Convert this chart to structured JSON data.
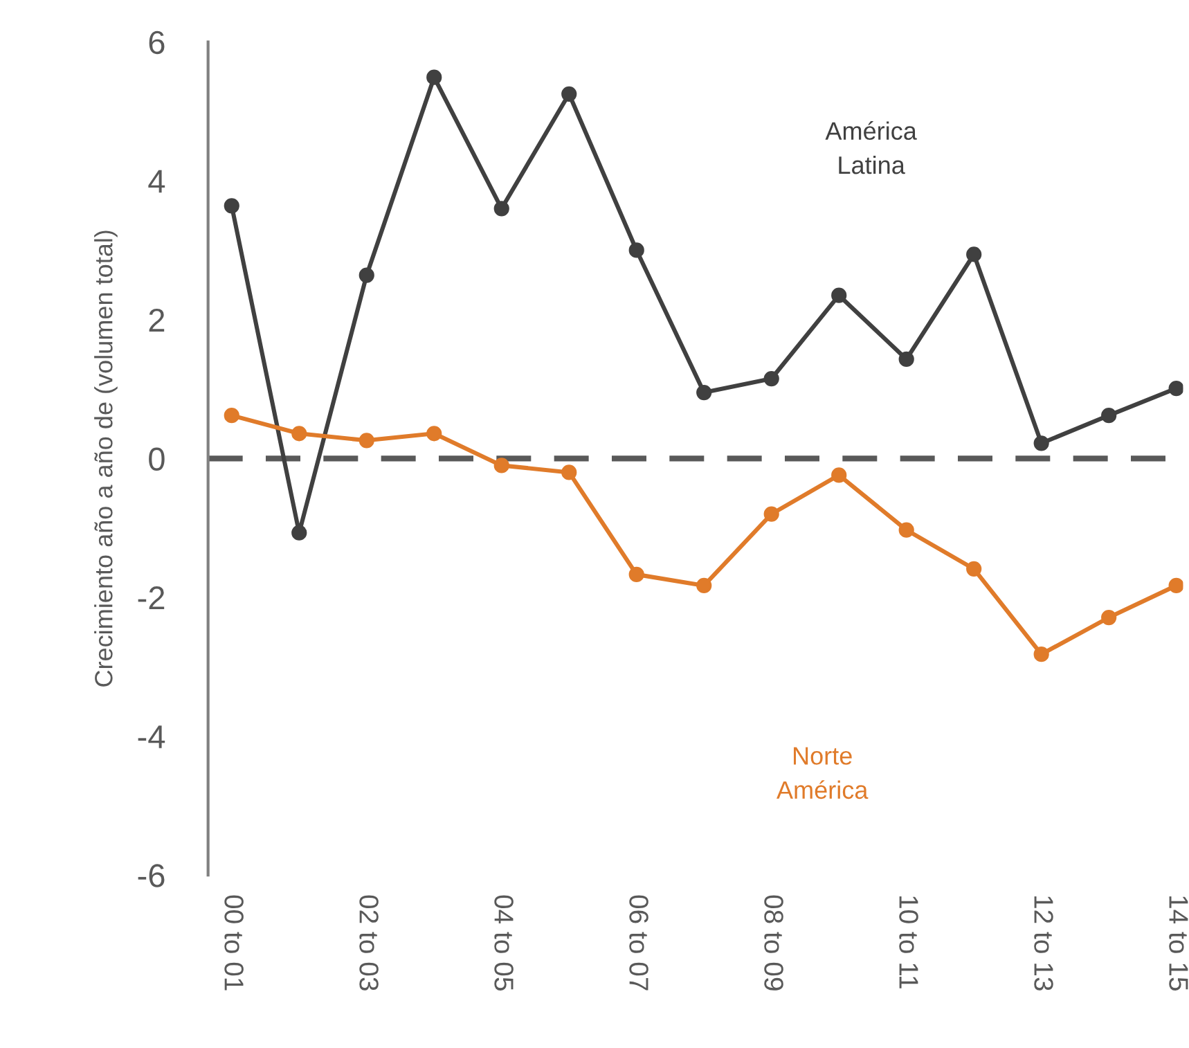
{
  "chart_data": {
    "type": "line",
    "ylabel": "Crecimiento año a año de (volumen total)",
    "categories": [
      "00 to 01",
      null,
      "02 to 03",
      null,
      "04 to 05",
      null,
      "06 to 07",
      null,
      "08 to 09",
      null,
      "10 to 11",
      null,
      "12 to 13",
      null,
      "14 to 15"
    ],
    "series": [
      {
        "name": "América Latina",
        "color": "#404040",
        "values": [
          3.64,
          -1.07,
          2.64,
          5.49,
          3.6,
          5.25,
          3.0,
          0.95,
          1.15,
          2.35,
          1.43,
          2.94,
          0.22,
          0.62,
          1.01
        ]
      },
      {
        "name": "Norte América",
        "color": "#e07b2a",
        "values": [
          0.62,
          0.36,
          0.26,
          0.36,
          -0.1,
          -0.2,
          -1.67,
          -1.83,
          -0.8,
          -0.24,
          -1.03,
          -1.59,
          -2.82,
          -2.29,
          -1.83
        ]
      }
    ],
    "ylim": [
      -6,
      6
    ],
    "yticks": [
      -6,
      -4,
      -2,
      0,
      2,
      4,
      6
    ],
    "ref_lines": [
      {
        "axis": "y",
        "value": 0,
        "color": "#595959",
        "line_style": "dashed"
      }
    ],
    "marker": "circle",
    "line_style": "solid",
    "grid": false,
    "legend": false
  }
}
